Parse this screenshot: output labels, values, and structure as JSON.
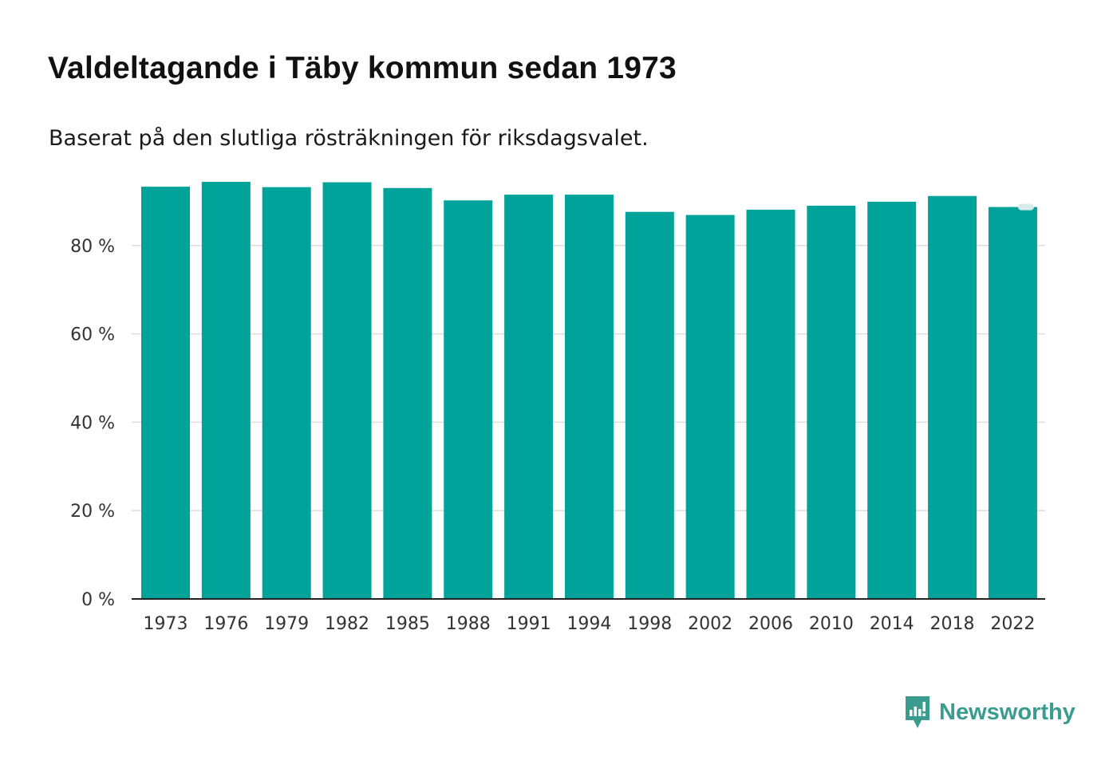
{
  "title": "Valdeltagande i Täby kommun sedan 1973",
  "subtitle": "Baserat på den slutliga rösträkningen för riksdagsvalet.",
  "brand": {
    "name": "Newsworthy",
    "color": "#3a9c8e",
    "icon": "newsworthy-logo-icon"
  },
  "chart_data": {
    "type": "bar",
    "title": "Valdeltagande i Täby kommun sedan 1973",
    "subtitle": "Baserat på den slutliga rösträkningen för riksdagsvalet.",
    "xlabel": "",
    "ylabel": "",
    "categories": [
      "1973",
      "1976",
      "1979",
      "1982",
      "1985",
      "1988",
      "1991",
      "1994",
      "1998",
      "2002",
      "2006",
      "2010",
      "2014",
      "2018",
      "2022"
    ],
    "values": [
      93.3,
      94.4,
      93.2,
      94.3,
      93.0,
      90.2,
      91.5,
      91.5,
      87.6,
      86.9,
      88.1,
      89.0,
      89.9,
      91.2,
      88.7
    ],
    "ylim": [
      0,
      94.4
    ],
    "yticks": [
      0,
      20,
      40,
      60,
      80
    ],
    "ytick_labels": [
      "0 %",
      "20 %",
      "40 %",
      "60 %",
      "80 %"
    ],
    "grid": true,
    "bar_color": "#00a39a",
    "grid_color": "#dddddd",
    "axis_color": "#222222"
  }
}
